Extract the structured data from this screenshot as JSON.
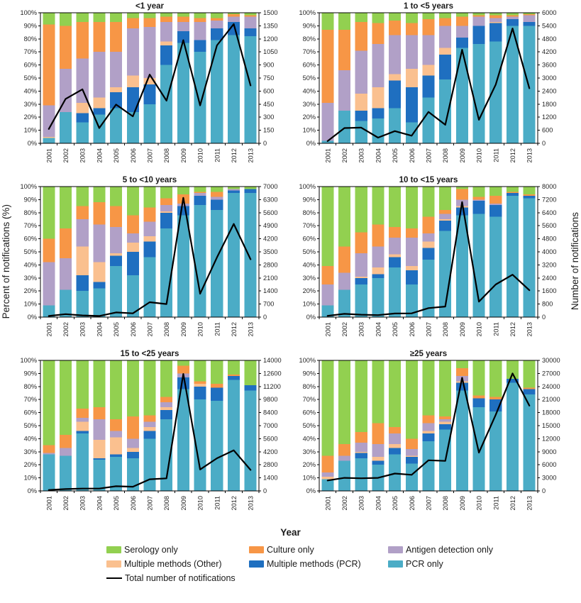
{
  "figure": {
    "left_axis_label": "Percent of notifications (%)",
    "right_axis_label": "Number of notifications",
    "x_axis_label": "Year"
  },
  "colors": {
    "serology": "#92d050",
    "culture": "#f79646",
    "antigen": "#b1a0c7",
    "multi_other": "#fac08f",
    "multi_pcr": "#1f6fc0",
    "pcr": "#4bacc6",
    "line": "#000000"
  },
  "legend": [
    {
      "label": "Serology only",
      "key": "serology",
      "type": "box"
    },
    {
      "label": "Culture only",
      "key": "culture",
      "type": "box"
    },
    {
      "label": "Antigen detection only",
      "key": "antigen",
      "type": "box"
    },
    {
      "label": "Multiple methods (Other)",
      "key": "multi_other",
      "type": "box"
    },
    {
      "label": "Multiple methods (PCR)",
      "key": "multi_pcr",
      "type": "box"
    },
    {
      "label": "PCR only",
      "key": "pcr",
      "type": "box"
    },
    {
      "label": "Total number of notifications",
      "key": "line",
      "type": "line"
    }
  ],
  "chart_data": [
    {
      "type": "stacked-bar-line",
      "title": "<1 year",
      "categories": [
        "2001",
        "2002",
        "2003",
        "2004",
        "2005",
        "2006",
        "2007",
        "2008",
        "2009",
        "2010",
        "2011",
        "2012",
        "2013"
      ],
      "left_axis": {
        "min": 0,
        "max": 100,
        "step": 10,
        "unit": "%"
      },
      "right_axis": {
        "min": 0,
        "max": 1500,
        "step": 150
      },
      "series": [
        {
          "name": "PCR only",
          "key": "pcr",
          "values": [
            4,
            24,
            16,
            22,
            27,
            24,
            30,
            60,
            77,
            70,
            79,
            83,
            82
          ]
        },
        {
          "name": "Multiple methods (PCR)",
          "key": "multi_pcr",
          "values": [
            0,
            0,
            7,
            5,
            12,
            19,
            15,
            15,
            9,
            9,
            9,
            10,
            6
          ]
        },
        {
          "name": "Multiple methods (Other)",
          "key": "multi_other",
          "values": [
            1,
            0,
            8,
            8,
            4,
            9,
            5,
            3,
            0,
            0,
            0,
            0,
            0
          ]
        },
        {
          "name": "Antigen detection only",
          "key": "antigen",
          "values": [
            24,
            33,
            34,
            35,
            27,
            36,
            39,
            15,
            7,
            14,
            6,
            4,
            9
          ]
        },
        {
          "name": "Culture only",
          "key": "culture",
          "values": [
            62,
            33,
            28,
            23,
            23,
            8,
            7,
            4,
            4,
            3,
            2,
            2,
            1
          ]
        },
        {
          "name": "Serology only",
          "key": "serology",
          "values": [
            9,
            10,
            7,
            7,
            7,
            4,
            4,
            3,
            3,
            4,
            4,
            1,
            2
          ]
        }
      ],
      "line_series": {
        "name": "Total number of notifications",
        "values": [
          165,
          510,
          620,
          175,
          445,
          310,
          790,
          490,
          1185,
          435,
          1125,
          1370,
          665
        ]
      }
    },
    {
      "type": "stacked-bar-line",
      "title": "1 to <5 years",
      "categories": [
        "2001",
        "2002",
        "2003",
        "2004",
        "2005",
        "2006",
        "2007",
        "2008",
        "2009",
        "2010",
        "2011",
        "2012",
        "2013"
      ],
      "left_axis": {
        "min": 0,
        "max": 100,
        "step": 10,
        "unit": "%"
      },
      "right_axis": {
        "min": 0,
        "max": 6000,
        "step": 600
      },
      "series": [
        {
          "name": "PCR only",
          "key": "pcr",
          "values": [
            2,
            25,
            17,
            19,
            27,
            16,
            35,
            49,
            73,
            76,
            78,
            90,
            90
          ]
        },
        {
          "name": "Multiple methods (PCR)",
          "key": "multi_pcr",
          "values": [
            0,
            0,
            8,
            8,
            21,
            27,
            17,
            19,
            8,
            14,
            14,
            5,
            3
          ]
        },
        {
          "name": "Multiple methods (Other)",
          "key": "multi_other",
          "values": [
            0,
            0,
            13,
            16,
            5,
            14,
            8,
            5,
            0,
            0,
            1,
            0,
            0
          ]
        },
        {
          "name": "Antigen detection only",
          "key": "antigen",
          "values": [
            29,
            31,
            33,
            33,
            30,
            26,
            23,
            17,
            9,
            7,
            3,
            2,
            5
          ]
        },
        {
          "name": "Culture only",
          "key": "culture",
          "values": [
            56,
            31,
            22,
            16,
            11,
            9,
            12,
            6,
            7,
            1,
            2,
            1,
            1
          ]
        },
        {
          "name": "Serology only",
          "key": "serology",
          "values": [
            13,
            13,
            7,
            8,
            6,
            8,
            5,
            4,
            3,
            2,
            2,
            2,
            1
          ]
        }
      ],
      "line_series": {
        "name": "Total number of notifications",
        "values": [
          100,
          700,
          720,
          260,
          560,
          350,
          1440,
          850,
          4300,
          1080,
          2700,
          5280,
          2530
        ]
      }
    },
    {
      "type": "stacked-bar-line",
      "title": "5 to <10 years",
      "categories": [
        "2001",
        "2002",
        "2003",
        "2004",
        "2005",
        "2006",
        "2007",
        "2008",
        "2009",
        "2010",
        "2011",
        "2012",
        "2013"
      ],
      "left_axis": {
        "min": 0,
        "max": 100,
        "step": 10,
        "unit": "%"
      },
      "right_axis": {
        "min": 0,
        "max": 7000,
        "step": 700
      },
      "series": [
        {
          "name": "PCR only",
          "key": "pcr",
          "values": [
            9,
            21,
            20,
            22,
            39,
            32,
            46,
            68,
            78,
            86,
            82,
            95,
            95
          ]
        },
        {
          "name": "Multiple methods (PCR)",
          "key": "multi_pcr",
          "values": [
            0,
            0,
            12,
            5,
            8,
            18,
            12,
            12,
            7,
            7,
            8,
            2,
            3
          ]
        },
        {
          "name": "Multiple methods (Other)",
          "key": "multi_other",
          "values": [
            0,
            0,
            22,
            15,
            2,
            7,
            4,
            1,
            0,
            0,
            0,
            0,
            0
          ]
        },
        {
          "name": "Antigen detection only",
          "key": "antigen",
          "values": [
            33,
            24,
            21,
            29,
            20,
            7,
            11,
            5,
            2,
            2,
            2,
            1,
            0
          ]
        },
        {
          "name": "Culture only",
          "key": "culture",
          "values": [
            18,
            23,
            10,
            17,
            16,
            14,
            11,
            5,
            7,
            1,
            4,
            0,
            0
          ]
        },
        {
          "name": "Serology only",
          "key": "serology",
          "values": [
            40,
            32,
            15,
            12,
            15,
            22,
            16,
            9,
            6,
            4,
            4,
            2,
            2
          ]
        }
      ],
      "line_series": {
        "name": "Total number of notifications",
        "values": [
          60,
          160,
          90,
          60,
          250,
          200,
          800,
          700,
          6400,
          1250,
          3200,
          5000,
          3100
        ]
      }
    },
    {
      "type": "stacked-bar-line",
      "title": "10 to <15 years",
      "categories": [
        "2001",
        "2002",
        "2003",
        "2004",
        "2005",
        "2006",
        "2007",
        "2008",
        "2009",
        "2010",
        "2011",
        "2012",
        "2013"
      ],
      "left_axis": {
        "min": 0,
        "max": 100,
        "step": 10,
        "unit": "%"
      },
      "right_axis": {
        "min": 0,
        "max": 8000,
        "step": 800
      },
      "series": [
        {
          "name": "PCR only",
          "key": "pcr",
          "values": [
            9,
            21,
            25,
            30,
            38,
            25,
            44,
            66,
            78,
            79,
            77,
            93,
            91
          ]
        },
        {
          "name": "Multiple methods (PCR)",
          "key": "multi_pcr",
          "values": [
            0,
            0,
            5,
            3,
            8,
            11,
            9,
            8,
            6,
            10,
            9,
            2,
            2
          ]
        },
        {
          "name": "Multiple methods (Other)",
          "key": "multi_other",
          "values": [
            0,
            0,
            1,
            5,
            2,
            3,
            5,
            1,
            1,
            0,
            0,
            0,
            0
          ]
        },
        {
          "name": "Antigen detection only",
          "key": "antigen",
          "values": [
            16,
            13,
            18,
            16,
            13,
            22,
            6,
            4,
            5,
            1,
            1,
            0,
            0
          ]
        },
        {
          "name": "Culture only",
          "key": "culture",
          "values": [
            14,
            20,
            16,
            17,
            8,
            7,
            13,
            3,
            8,
            2,
            6,
            1,
            1
          ]
        },
        {
          "name": "Serology only",
          "key": "serology",
          "values": [
            61,
            46,
            35,
            29,
            31,
            32,
            23,
            18,
            2,
            8,
            7,
            4,
            6
          ]
        }
      ],
      "line_series": {
        "name": "Total number of notifications",
        "values": [
          80,
          200,
          150,
          120,
          220,
          230,
          550,
          650,
          7050,
          950,
          2000,
          2600,
          1650
        ]
      }
    },
    {
      "type": "stacked-bar-line",
      "title": "15 to <25 years",
      "categories": [
        "2001",
        "2002",
        "2003",
        "2004",
        "2005",
        "2006",
        "2007",
        "2008",
        "2009",
        "2010",
        "2011",
        "2012",
        "2013"
      ],
      "left_axis": {
        "min": 0,
        "max": 100,
        "step": 10,
        "unit": "%"
      },
      "right_axis": {
        "min": 0,
        "max": 14000,
        "step": 1400
      },
      "series": [
        {
          "name": "PCR only",
          "key": "pcr",
          "values": [
            28,
            27,
            44,
            24,
            26,
            25,
            40,
            55,
            78,
            70,
            69,
            85,
            77
          ]
        },
        {
          "name": "Multiple methods (PCR)",
          "key": "multi_pcr",
          "values": [
            0,
            0,
            2,
            1,
            2,
            5,
            6,
            7,
            9,
            10,
            10,
            3,
            4
          ]
        },
        {
          "name": "Multiple methods (Other)",
          "key": "multi_other",
          "values": [
            0,
            0,
            7,
            14,
            13,
            3,
            3,
            2,
            0,
            2,
            0,
            0,
            0
          ]
        },
        {
          "name": "Antigen detection only",
          "key": "antigen",
          "values": [
            1,
            6,
            3,
            16,
            5,
            7,
            4,
            4,
            3,
            0,
            0,
            0,
            0
          ]
        },
        {
          "name": "Culture only",
          "key": "culture",
          "values": [
            6,
            10,
            7,
            9,
            9,
            17,
            5,
            4,
            6,
            2,
            3,
            1,
            0
          ]
        },
        {
          "name": "Serology only",
          "key": "serology",
          "values": [
            65,
            57,
            37,
            36,
            45,
            43,
            42,
            28,
            4,
            16,
            18,
            11,
            19
          ]
        }
      ],
      "line_series": {
        "name": "Total number of notifications",
        "values": [
          100,
          200,
          250,
          250,
          500,
          450,
          1250,
          1350,
          12550,
          2300,
          3500,
          4350,
          2250
        ]
      }
    },
    {
      "type": "stacked-bar-line",
      "title": "≥25 years",
      "categories": [
        "2001",
        "2002",
        "2003",
        "2004",
        "2005",
        "2006",
        "2007",
        "2008",
        "2009",
        "2010",
        "2011",
        "2012",
        "2013"
      ],
      "left_axis": {
        "min": 0,
        "max": 100,
        "step": 10,
        "unit": "%"
      },
      "right_axis": {
        "min": 0,
        "max": 30000,
        "step": 3000
      },
      "series": [
        {
          "name": "PCR only",
          "key": "pcr",
          "values": [
            9,
            23,
            25,
            20,
            28,
            21,
            38,
            47,
            77,
            64,
            61,
            83,
            74
          ]
        },
        {
          "name": "Multiple methods (PCR)",
          "key": "multi_pcr",
          "values": [
            0,
            0,
            4,
            3,
            5,
            5,
            6,
            4,
            6,
            7,
            9,
            3,
            4
          ]
        },
        {
          "name": "Multiple methods (Other)",
          "key": "multi_other",
          "values": [
            2,
            0,
            1,
            3,
            3,
            1,
            2,
            2,
            1,
            0,
            0,
            0,
            0
          ]
        },
        {
          "name": "Antigen detection only",
          "key": "antigen",
          "values": [
            3,
            4,
            7,
            10,
            8,
            5,
            6,
            2,
            4,
            0,
            0,
            0,
            0
          ]
        },
        {
          "name": "Culture only",
          "key": "culture",
          "values": [
            13,
            9,
            8,
            16,
            5,
            8,
            6,
            2,
            6,
            2,
            2,
            0,
            1
          ]
        },
        {
          "name": "Serology only",
          "key": "serology",
          "values": [
            73,
            64,
            55,
            48,
            51,
            60,
            42,
            43,
            6,
            27,
            28,
            14,
            21
          ]
        }
      ],
      "line_series": {
        "name": "Total number of notifications",
        "values": [
          2400,
          3000,
          2900,
          3000,
          4000,
          3700,
          7050,
          6900,
          26000,
          8800,
          17500,
          27000,
          19600
        ]
      }
    }
  ]
}
